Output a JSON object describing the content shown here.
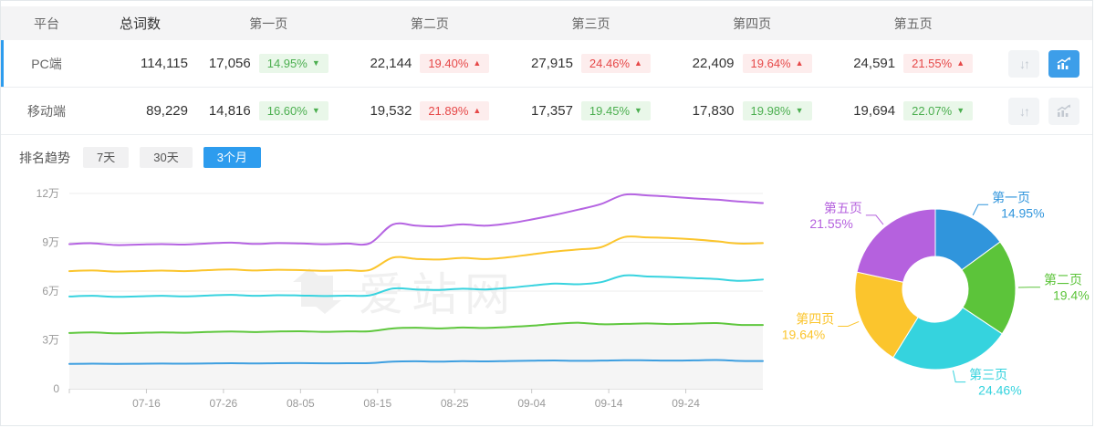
{
  "table": {
    "headers": [
      "平台",
      "总词数",
      "第一页",
      "第二页",
      "第三页",
      "第四页",
      "第五页"
    ],
    "rows": [
      {
        "platform": "PC端",
        "total": "114,115",
        "selected": true,
        "chart_active": true,
        "pages": [
          {
            "count": "17,056",
            "pct": "14.95%",
            "dir": "down"
          },
          {
            "count": "22,144",
            "pct": "19.40%",
            "dir": "up"
          },
          {
            "count": "27,915",
            "pct": "24.46%",
            "dir": "up"
          },
          {
            "count": "22,409",
            "pct": "19.64%",
            "dir": "up"
          },
          {
            "count": "24,591",
            "pct": "21.55%",
            "dir": "up"
          }
        ]
      },
      {
        "platform": "移动端",
        "total": "89,229",
        "selected": false,
        "chart_active": false,
        "pages": [
          {
            "count": "14,816",
            "pct": "16.60%",
            "dir": "down"
          },
          {
            "count": "19,532",
            "pct": "21.89%",
            "dir": "up"
          },
          {
            "count": "17,357",
            "pct": "19.45%",
            "dir": "down"
          },
          {
            "count": "17,830",
            "pct": "19.98%",
            "dir": "down"
          },
          {
            "count": "19,694",
            "pct": "22.07%",
            "dir": "down"
          }
        ]
      }
    ]
  },
  "trend": {
    "label": "排名趋势",
    "tabs": [
      {
        "label": "7天",
        "active": false
      },
      {
        "label": "30天",
        "active": false
      },
      {
        "label": "3个月",
        "active": true
      }
    ]
  },
  "watermark": "爱站网",
  "icons": {
    "sort": "↓↑",
    "up_triangle": "▲",
    "down_triangle": "▼",
    "trend_chart": "bar-line-chart"
  },
  "colors": {
    "accent_blue": "#2d9cee",
    "badge_green": "#4caf50",
    "badge_green_bg": "#e9f7e9",
    "badge_red": "#e64848",
    "badge_red_bg": "#fdeded",
    "page1_blue": "#3e9fe0",
    "page2_green": "#5fc73e",
    "page3_cyan": "#38d3df",
    "page4_yellow": "#fbc52d",
    "page5_purple": "#b564e2",
    "grid": "#ececec",
    "axis": "#c8c8c8",
    "axis_label": "#999999",
    "watermark_gray": "#f0f0f0"
  },
  "chart_data": [
    {
      "type": "line",
      "title": "排名趋势 3个月 (values are cumulative stacked keyword counts, PC端)",
      "ylim": [
        0,
        120000
      ],
      "total_days": 90,
      "grid": true,
      "y_ticks": [
        {
          "v": 0,
          "label": "0"
        },
        {
          "v": 30000,
          "label": "3万"
        },
        {
          "v": 60000,
          "label": "6万"
        },
        {
          "v": 90000,
          "label": "9万"
        },
        {
          "v": 120000,
          "label": "12万"
        }
      ],
      "x_ticks": [
        {
          "day": 10,
          "label": "07-16"
        },
        {
          "day": 20,
          "label": "07-26"
        },
        {
          "day": 30,
          "label": "08-05"
        },
        {
          "day": 40,
          "label": "08-15"
        },
        {
          "day": 50,
          "label": "08-25"
        },
        {
          "day": 60,
          "label": "09-04"
        },
        {
          "day": 70,
          "label": "09-14"
        },
        {
          "day": 80,
          "label": "09-24"
        }
      ],
      "x_dates": [
        "07-06",
        "07-09",
        "07-12",
        "07-15",
        "07-18",
        "07-21",
        "07-24",
        "07-27",
        "07-30",
        "08-02",
        "08-05",
        "08-08",
        "08-11",
        "08-14",
        "08-17",
        "08-20",
        "08-23",
        "08-26",
        "08-29",
        "09-01",
        "09-04",
        "09-07",
        "09-10",
        "09-13",
        "09-16",
        "09-19",
        "09-22",
        "09-25",
        "09-28",
        "10-01",
        "10-04"
      ],
      "series": [
        {
          "name": "第一页",
          "color": "#3e9fe0",
          "values": [
            15300,
            15400,
            15250,
            15350,
            15500,
            15400,
            15550,
            15700,
            15550,
            15700,
            15750,
            15600,
            15700,
            15750,
            16700,
            16900,
            16650,
            16950,
            16800,
            17050,
            17250,
            17400,
            17150,
            17300,
            17550,
            17450,
            17300,
            17450,
            17650,
            17100,
            17056
          ]
        },
        {
          "name": "第二页(累计)",
          "color": "#5fc73e",
          "area": "#f5f5f5",
          "values": [
            34300,
            34600,
            34050,
            34350,
            34650,
            34450,
            34900,
            35200,
            34850,
            35200,
            35350,
            34950,
            35250,
            35350,
            37100,
            37500,
            37050,
            37650,
            37350,
            37950,
            38750,
            39850,
            40550,
            39650,
            39850,
            40150,
            39750,
            40050,
            40350,
            39250,
            39200
          ]
        },
        {
          "name": "第三页(累计)",
          "color": "#38d3df",
          "values": [
            56700,
            57100,
            56500,
            56800,
            57100,
            56800,
            57300,
            57700,
            57100,
            57500,
            57300,
            57000,
            57200,
            57400,
            61600,
            61000,
            60700,
            61500,
            61000,
            62000,
            63400,
            64600,
            64200,
            65500,
            69600,
            69000,
            68600,
            68000,
            67400,
            66300,
            67115
          ]
        },
        {
          "name": "第四页(累计)",
          "color": "#fbc52d",
          "values": [
            72300,
            72700,
            72000,
            72300,
            72600,
            72300,
            72900,
            73300,
            72700,
            73100,
            72900,
            72500,
            72800,
            73000,
            80600,
            79800,
            79400,
            80400,
            79700,
            80800,
            82600,
            84300,
            85600,
            87000,
            93200,
            93000,
            92600,
            91800,
            90600,
            89200,
            89524
          ]
        },
        {
          "name": "第五页(累计)",
          "color": "#b564e2",
          "values": [
            88900,
            89400,
            88300,
            88600,
            88900,
            88600,
            89300,
            89800,
            89000,
            89500,
            89300,
            88800,
            89200,
            89400,
            101000,
            100200,
            99800,
            101000,
            100200,
            101600,
            104000,
            106800,
            110000,
            113500,
            119200,
            118800,
            118000,
            117000,
            116200,
            115000,
            114115
          ]
        }
      ]
    },
    {
      "type": "pie",
      "donut": true,
      "title": "PC端各页占比",
      "slices": [
        {
          "label": "第一页",
          "pct": 14.95,
          "pct_label": "14.95%",
          "color": "#3095dc"
        },
        {
          "label": "第二页",
          "pct": 19.4,
          "pct_label": "19.4%",
          "color": "#5cc43a"
        },
        {
          "label": "第三页",
          "pct": 24.46,
          "pct_label": "24.46%",
          "color": "#35d3de"
        },
        {
          "label": "第四页",
          "pct": 19.64,
          "pct_label": "19.64%",
          "color": "#fbc52d"
        },
        {
          "label": "第五页",
          "pct": 21.55,
          "pct_label": "21.55%",
          "color": "#b561de"
        }
      ]
    }
  ]
}
